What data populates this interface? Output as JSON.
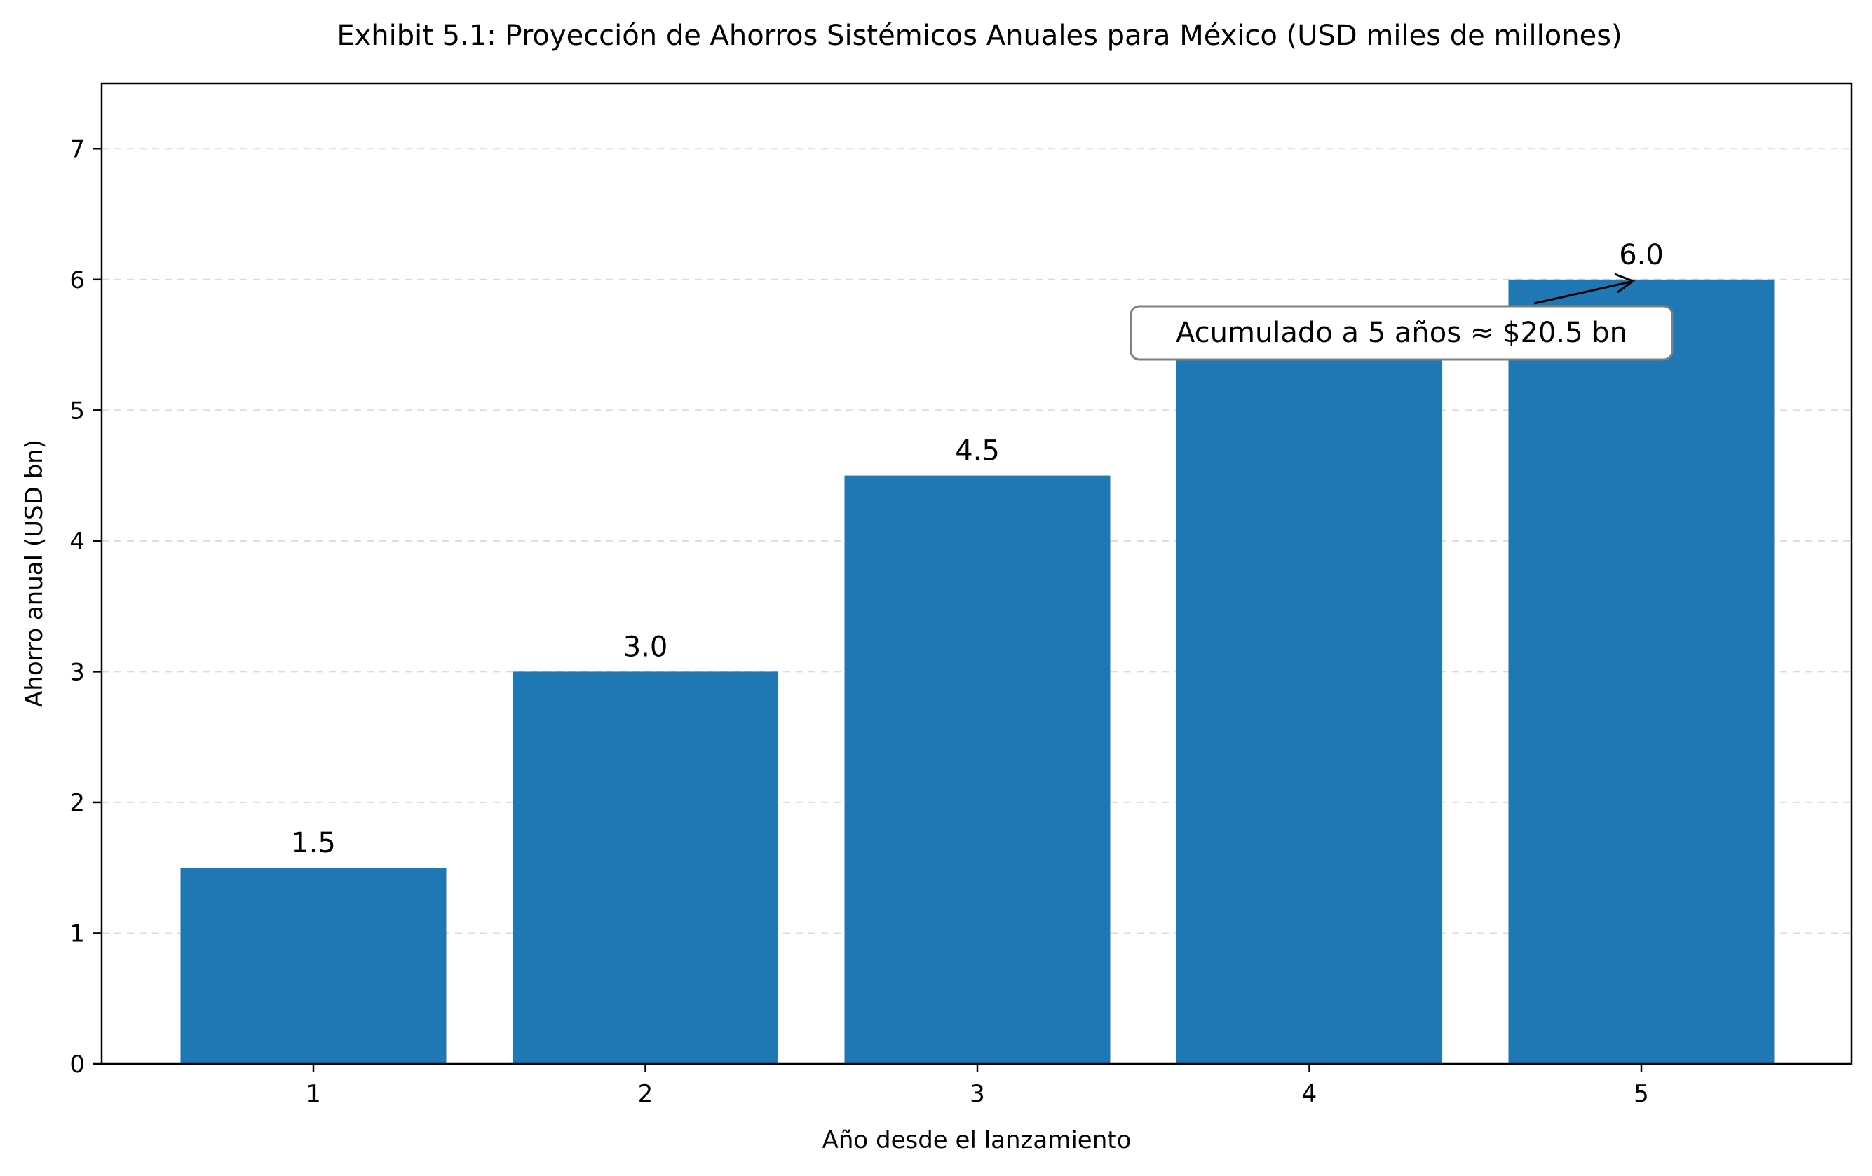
{
  "chart_data": {
    "type": "bar",
    "title": "Exhibit 5.1: Proyección de Ahorros Sistémicos Anuales para México (USD miles de millones)",
    "xlabel": "Año desde el lanzamiento",
    "ylabel": "Ahorro anual (USD bn)",
    "categories": [
      "1",
      "2",
      "3",
      "4",
      "5"
    ],
    "values": [
      1.5,
      3.0,
      4.5,
      5.5,
      6.0
    ],
    "data_labels": [
      "1.5",
      "3.0",
      "4.5",
      "",
      "6.0"
    ],
    "ylim": [
      0,
      7.5
    ],
    "yticks": [
      "0",
      "1",
      "2",
      "3",
      "4",
      "5",
      "6",
      "7"
    ],
    "grid": "horizontal dashed",
    "bar_color": "#1f77b4",
    "annotation": {
      "text": "Acumulado a 5 años ≈ $20.5 bn",
      "target_category": "5",
      "target_value": 6.0
    }
  }
}
